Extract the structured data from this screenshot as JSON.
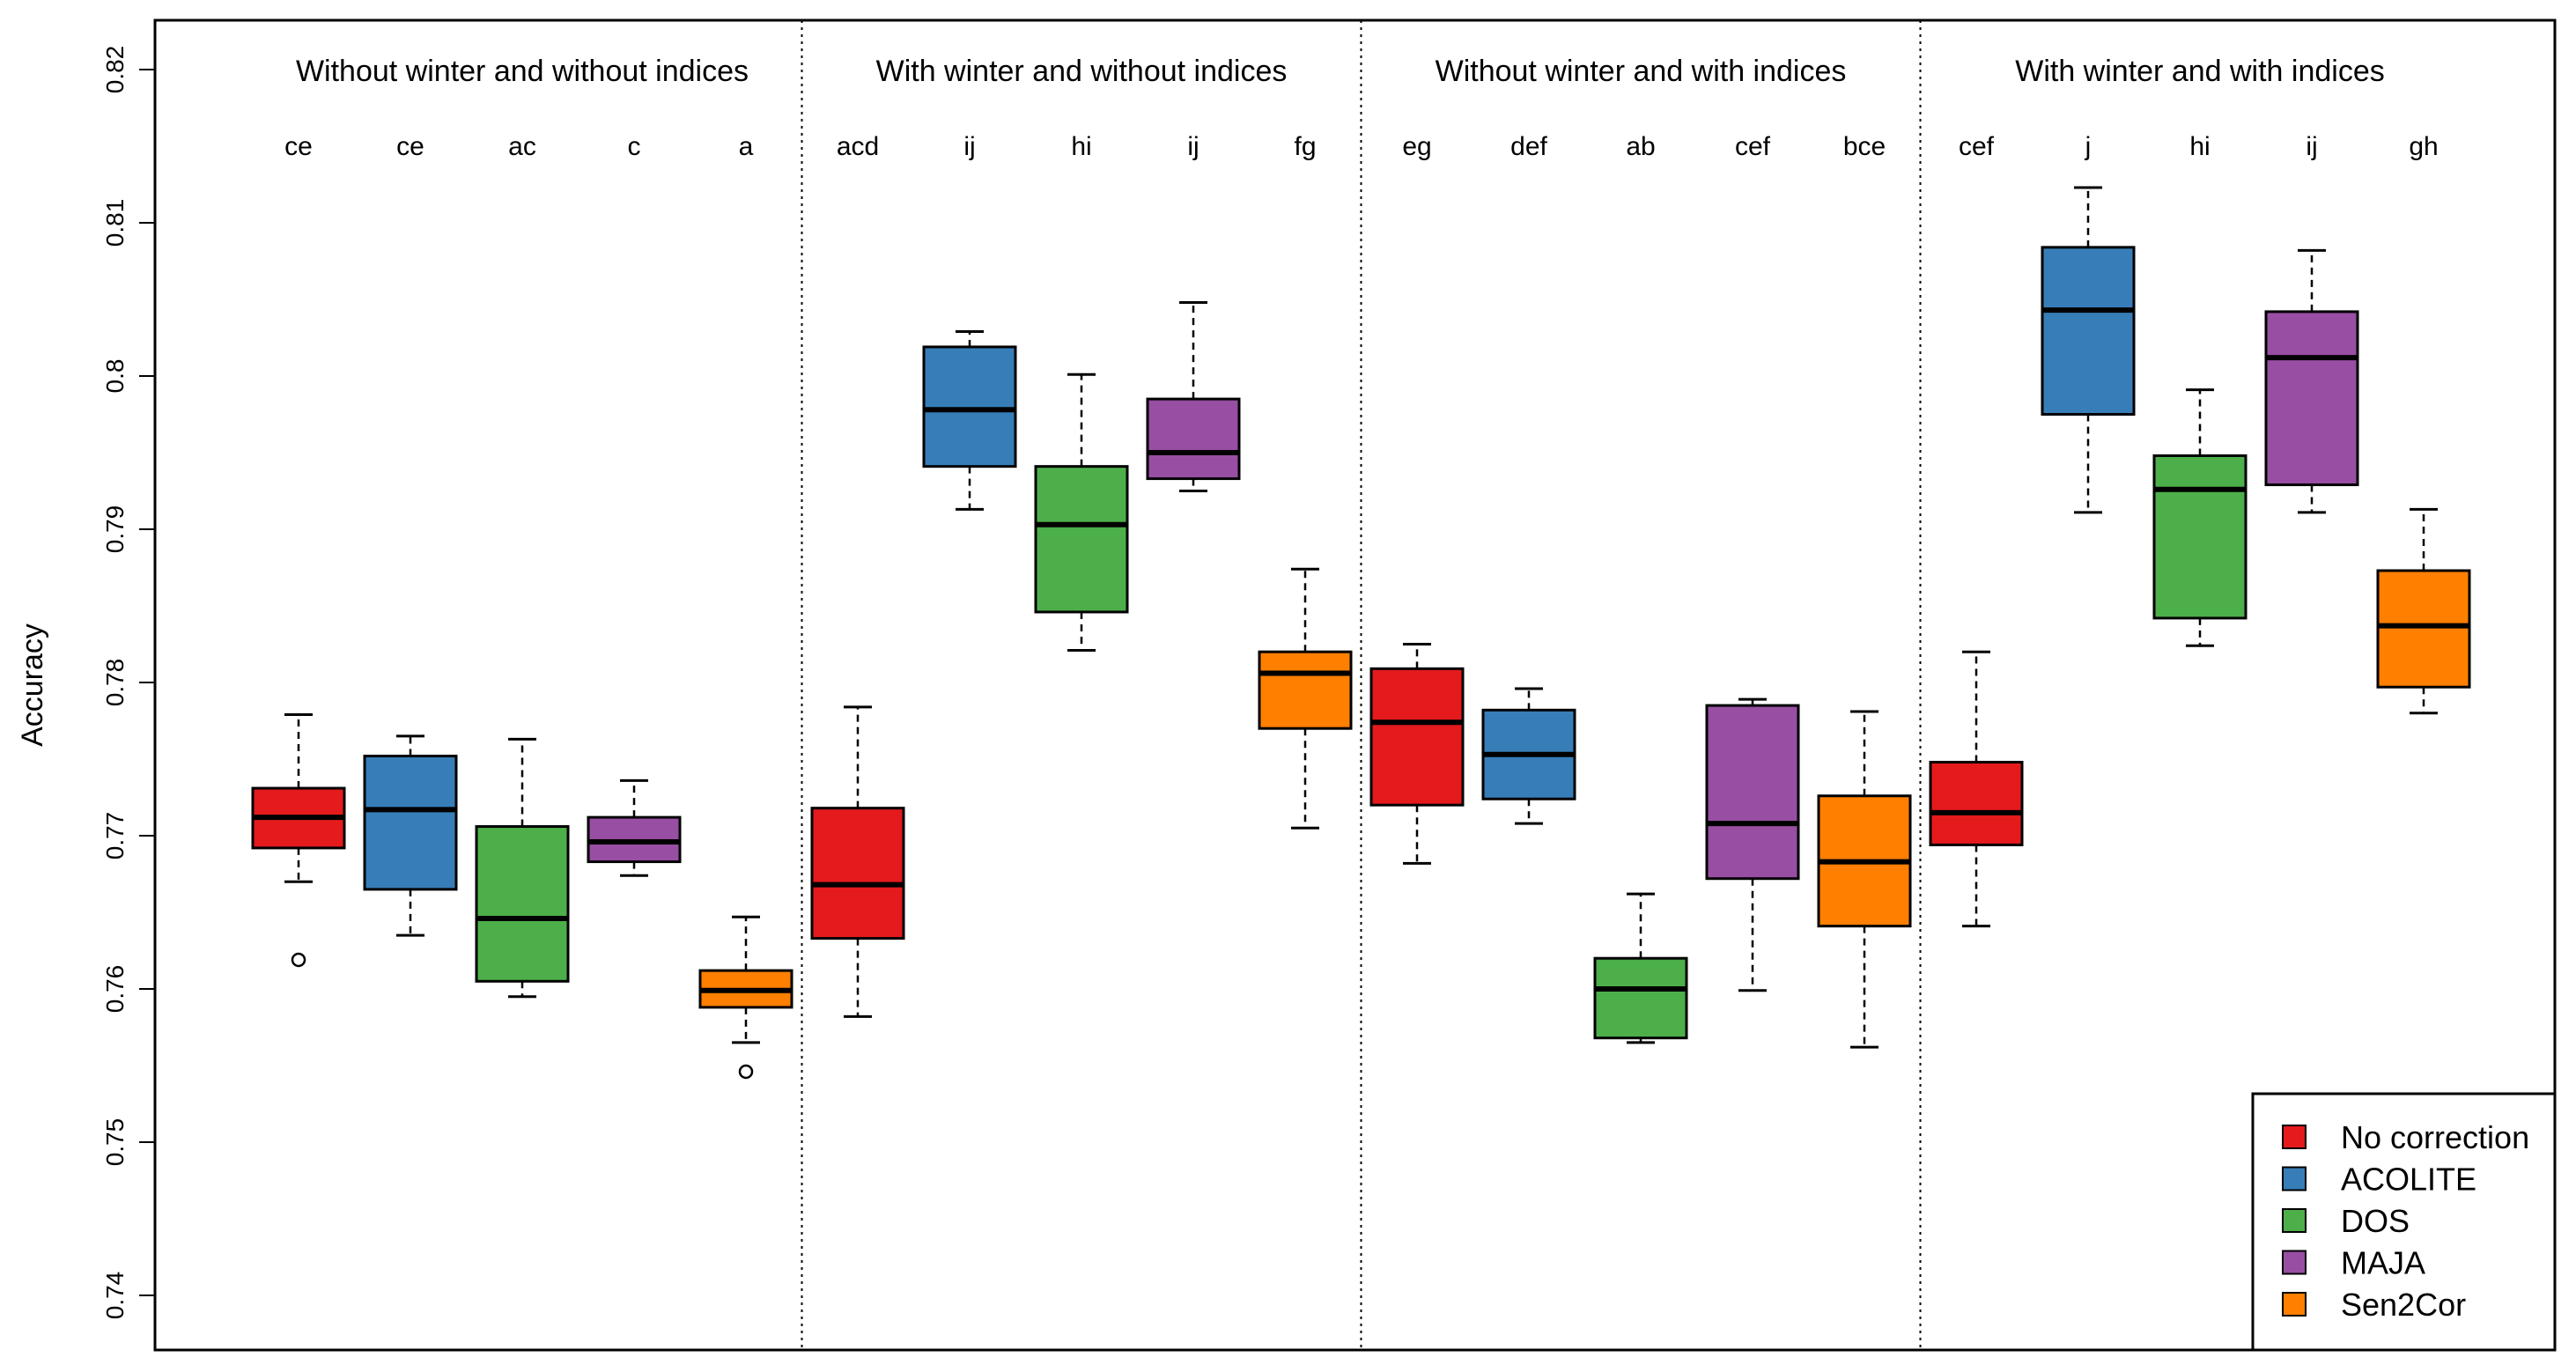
{
  "chart_data": {
    "type": "boxplot",
    "ylabel": "Accuracy",
    "xlabel": "",
    "ylim": [
      0.74,
      0.82
    ],
    "yticks": [
      "0.74",
      "0.75",
      "0.76",
      "0.77",
      "0.78",
      "0.79",
      "0.8",
      "0.81",
      "0.82"
    ],
    "legend_position": "bottom-right",
    "series_colors": {
      "No correction": "#E41A1C",
      "ACOLITE": "#377EB8",
      "DOS": "#4DAF4A",
      "MAJA": "#984EA3",
      "Sen2Cor": "#FF7F00"
    },
    "legend": [
      "No correction",
      "ACOLITE",
      "DOS",
      "MAJA",
      "Sen2Cor"
    ],
    "groups": [
      {
        "title": "Without winter and without indices",
        "boxes": [
          {
            "series": "No correction",
            "letters": "ce",
            "whisker_low": 0.767,
            "q1": 0.7692,
            "median": 0.7712,
            "q3": 0.7731,
            "whisker_high": 0.7779,
            "outliers": [
              0.7619
            ]
          },
          {
            "series": "ACOLITE",
            "letters": "ce",
            "whisker_low": 0.7635,
            "q1": 0.7665,
            "median": 0.7717,
            "q3": 0.7752,
            "whisker_high": 0.7765,
            "outliers": []
          },
          {
            "series": "DOS",
            "letters": "ac",
            "whisker_low": 0.7595,
            "q1": 0.7605,
            "median": 0.7646,
            "q3": 0.7706,
            "whisker_high": 0.7763,
            "outliers": []
          },
          {
            "series": "MAJA",
            "letters": "c",
            "whisker_low": 0.7674,
            "q1": 0.7683,
            "median": 0.7696,
            "q3": 0.7712,
            "whisker_high": 0.7736,
            "outliers": []
          },
          {
            "series": "Sen2Cor",
            "letters": "a",
            "whisker_low": 0.7565,
            "q1": 0.7588,
            "median": 0.7599,
            "q3": 0.7612,
            "whisker_high": 0.7647,
            "outliers": [
              0.7546
            ]
          }
        ]
      },
      {
        "title": "With winter and without indices",
        "boxes": [
          {
            "series": "No correction",
            "letters": "acd",
            "whisker_low": 0.7582,
            "q1": 0.7633,
            "median": 0.7668,
            "q3": 0.7718,
            "whisker_high": 0.7784,
            "outliers": []
          },
          {
            "series": "ACOLITE",
            "letters": "ij",
            "whisker_low": 0.7913,
            "q1": 0.7941,
            "median": 0.7978,
            "q3": 0.8019,
            "whisker_high": 0.8029,
            "outliers": []
          },
          {
            "series": "DOS",
            "letters": "hi",
            "whisker_low": 0.7821,
            "q1": 0.7846,
            "median": 0.7903,
            "q3": 0.7941,
            "whisker_high": 0.8001,
            "outliers": []
          },
          {
            "series": "MAJA",
            "letters": "ij",
            "whisker_low": 0.7925,
            "q1": 0.7933,
            "median": 0.795,
            "q3": 0.7985,
            "whisker_high": 0.8048,
            "outliers": []
          },
          {
            "series": "Sen2Cor",
            "letters": "fg",
            "whisker_low": 0.7705,
            "q1": 0.777,
            "median": 0.7806,
            "q3": 0.782,
            "whisker_high": 0.7874,
            "outliers": []
          }
        ]
      },
      {
        "title": "Without winter and with indices",
        "boxes": [
          {
            "series": "No correction",
            "letters": "eg",
            "whisker_low": 0.7682,
            "q1": 0.772,
            "median": 0.7774,
            "q3": 0.7809,
            "whisker_high": 0.7825,
            "outliers": []
          },
          {
            "series": "ACOLITE",
            "letters": "def",
            "whisker_low": 0.7708,
            "q1": 0.7724,
            "median": 0.7753,
            "q3": 0.7782,
            "whisker_high": 0.7796,
            "outliers": []
          },
          {
            "series": "DOS",
            "letters": "ab",
            "whisker_low": 0.7565,
            "q1": 0.7568,
            "median": 0.76,
            "q3": 0.762,
            "whisker_high": 0.7662,
            "outliers": []
          },
          {
            "series": "MAJA",
            "letters": "cef",
            "whisker_low": 0.7599,
            "q1": 0.7672,
            "median": 0.7708,
            "q3": 0.7785,
            "whisker_high": 0.7789,
            "outliers": []
          },
          {
            "series": "Sen2Cor",
            "letters": "bce",
            "whisker_low": 0.7562,
            "q1": 0.7641,
            "median": 0.7683,
            "q3": 0.7726,
            "whisker_high": 0.7781,
            "outliers": []
          }
        ]
      },
      {
        "title": "With winter and with indices",
        "boxes": [
          {
            "series": "No correction",
            "letters": "cef",
            "whisker_low": 0.7641,
            "q1": 0.7694,
            "median": 0.7715,
            "q3": 0.7748,
            "whisker_high": 0.782,
            "outliers": []
          },
          {
            "series": "ACOLITE",
            "letters": "j",
            "whisker_low": 0.7911,
            "q1": 0.7975,
            "median": 0.8043,
            "q3": 0.8084,
            "whisker_high": 0.8123,
            "outliers": []
          },
          {
            "series": "DOS",
            "letters": "hi",
            "whisker_low": 0.7824,
            "q1": 0.7842,
            "median": 0.7926,
            "q3": 0.7948,
            "whisker_high": 0.7991,
            "outliers": []
          },
          {
            "series": "MAJA",
            "letters": "ij",
            "whisker_low": 0.7911,
            "q1": 0.7929,
            "median": 0.8012,
            "q3": 0.8042,
            "whisker_high": 0.8082,
            "outliers": []
          },
          {
            "series": "Sen2Cor",
            "letters": "gh",
            "whisker_low": 0.778,
            "q1": 0.7797,
            "median": 0.7837,
            "q3": 0.7873,
            "whisker_high": 0.7913,
            "outliers": []
          }
        ]
      }
    ]
  }
}
